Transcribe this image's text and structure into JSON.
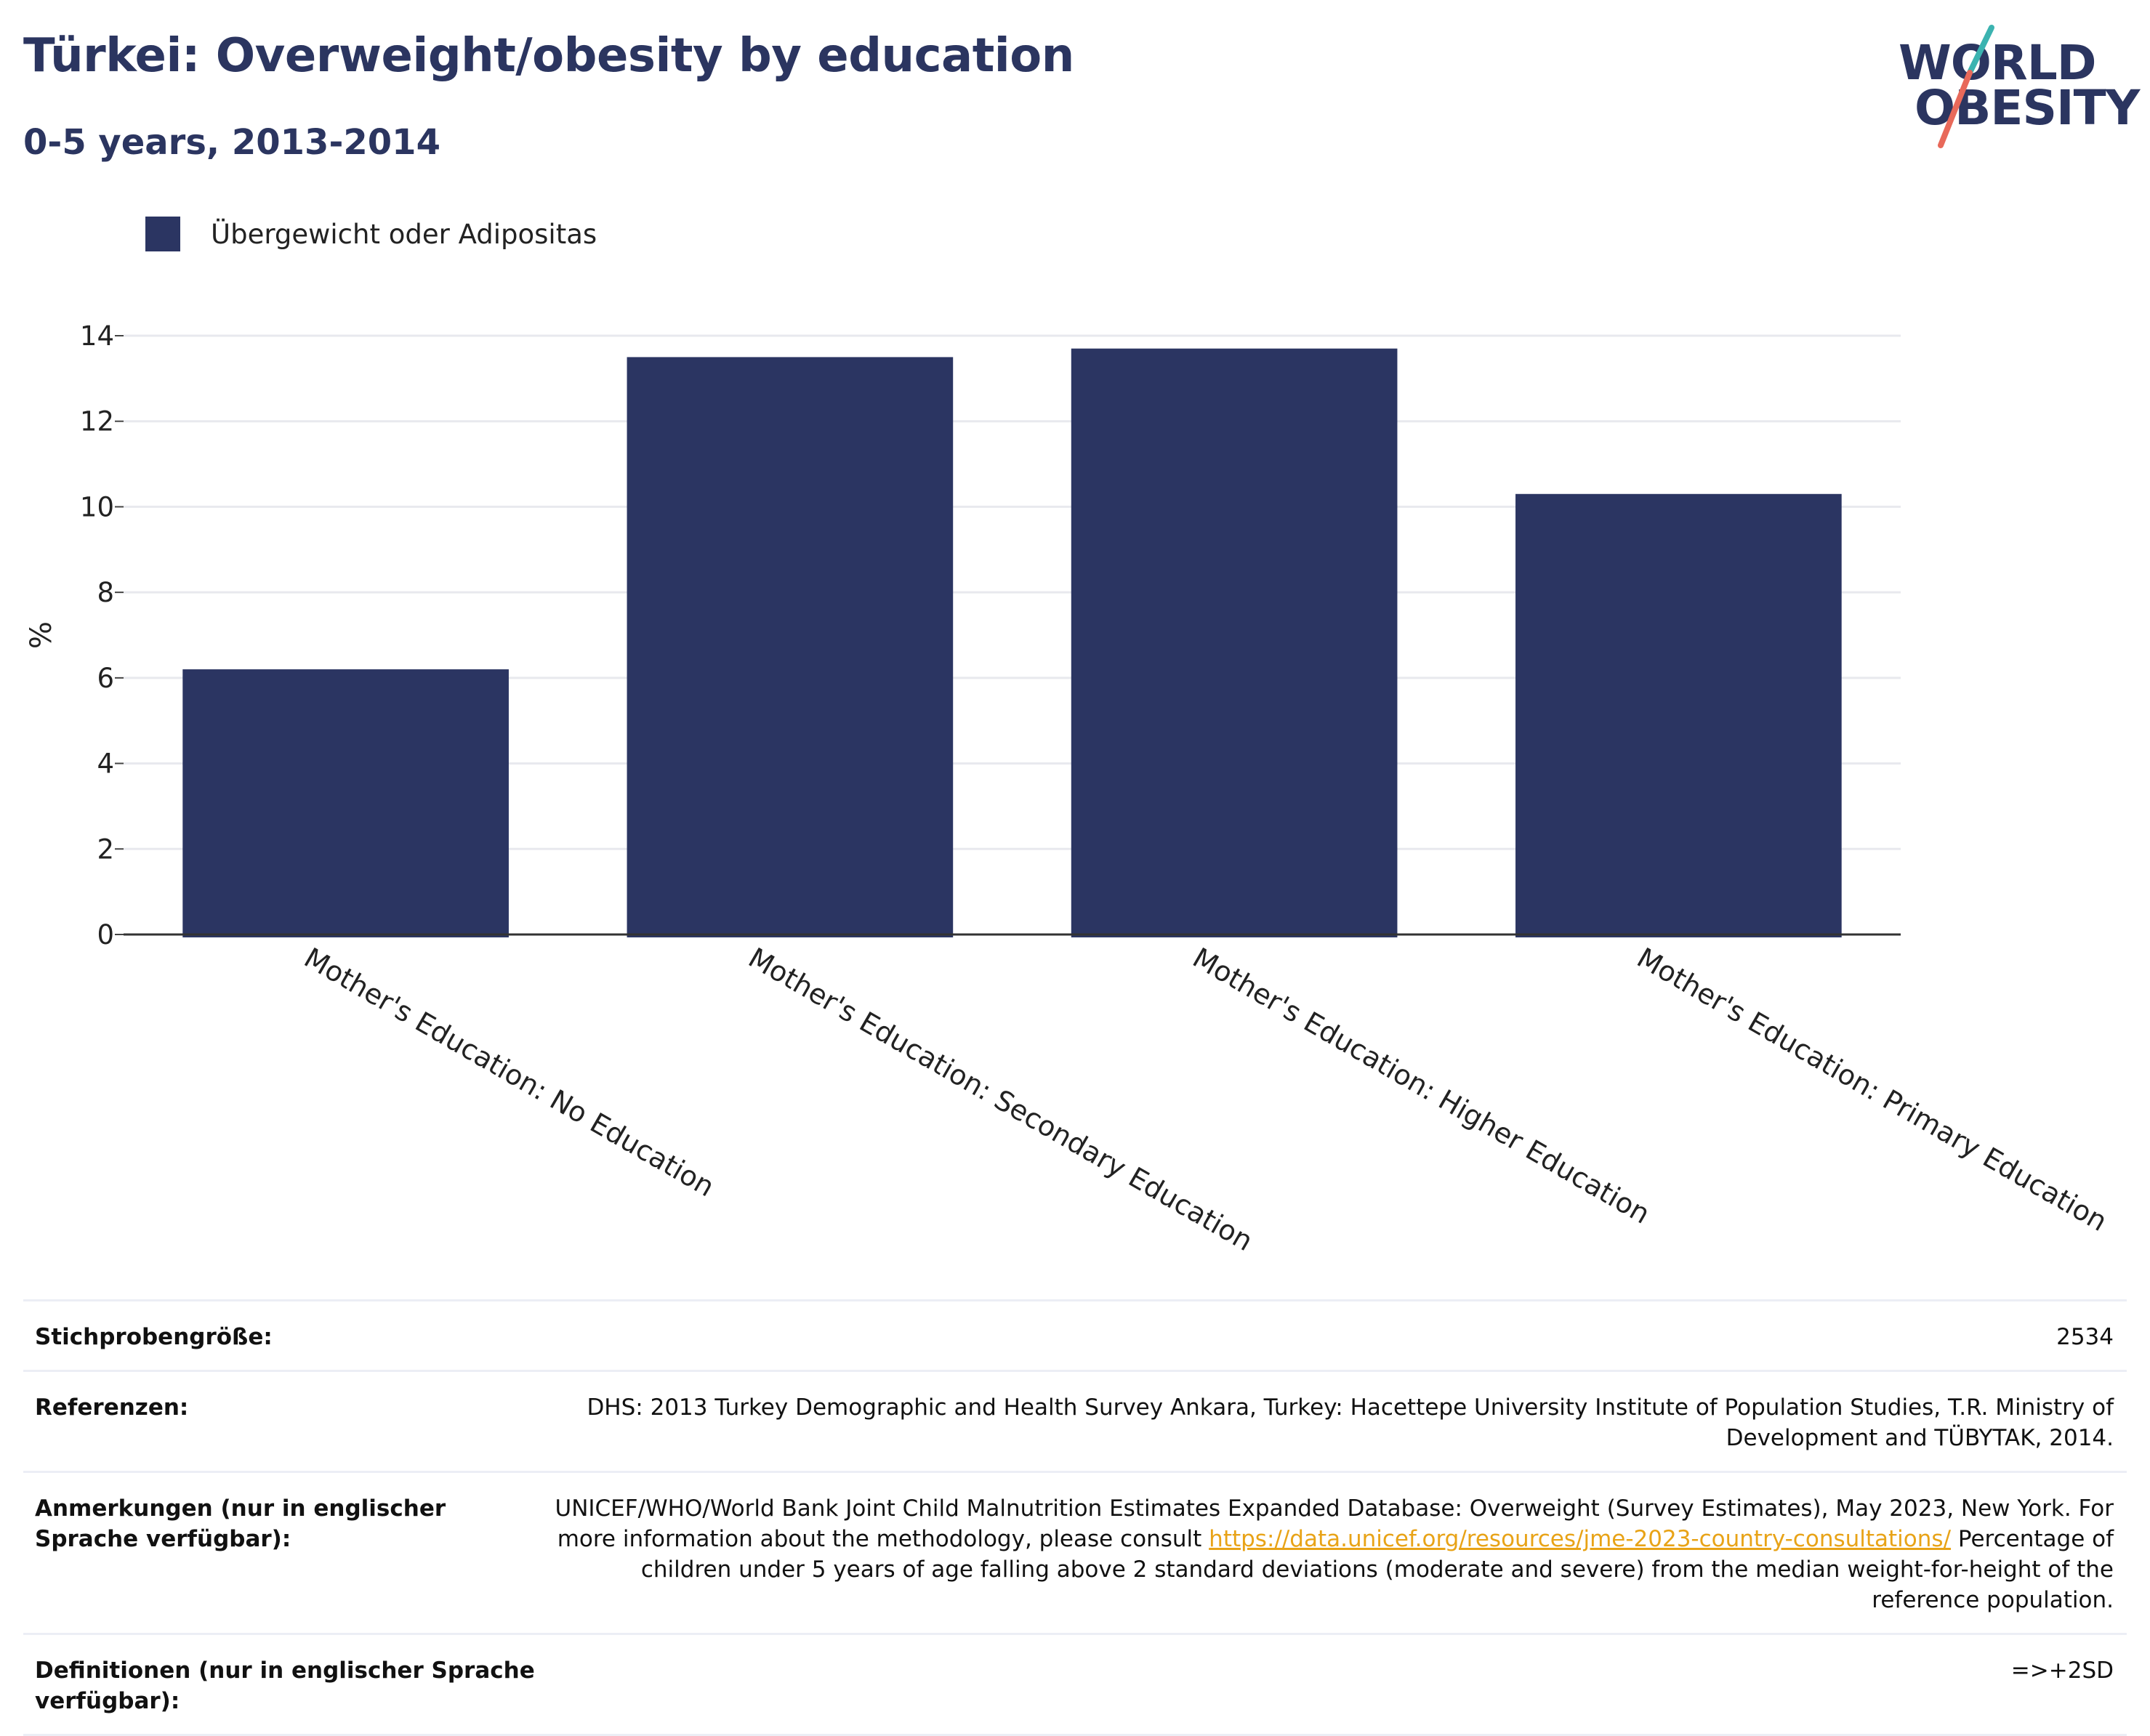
{
  "header": {
    "title": "Türkei: Overweight/obesity by education",
    "subtitle": "0-5 years, 2013-2014"
  },
  "logo": {
    "line1": "WORLD",
    "line2": "OBESITY",
    "colors": {
      "text": "#2b3560",
      "slash_top": "#3bb3b0",
      "slash_bottom": "#e8695a"
    }
  },
  "legend": {
    "label": "Übergewicht oder Adipositas",
    "color": "#2b3562"
  },
  "chart_data": {
    "type": "bar",
    "categories": [
      "Mother's Education: No Education",
      "Mother's Education: Secondary Education",
      "Mother's Education: Higher Education",
      "Mother's Education: Primary Education"
    ],
    "series": [
      {
        "name": "Übergewicht oder Adipositas",
        "values": [
          6.2,
          13.5,
          13.7,
          10.3
        ],
        "color": "#2b3562"
      }
    ],
    "ylabel": "%",
    "ylim": [
      0,
      14
    ],
    "yticks": [
      0,
      2,
      4,
      6,
      8,
      10,
      12,
      14
    ],
    "grid": true,
    "legend_position": "top-left"
  },
  "table": {
    "rows": [
      {
        "label": "Stichprobengröße:",
        "value": "2534"
      },
      {
        "label": "Referenzen:",
        "value": "DHS: 2013 Turkey Demographic and Health Survey Ankara, Turkey: Hacettepe University Institute of Population Studies, T.R. Ministry of Development and TÜBYTAK, 2014."
      },
      {
        "label": "Anmerkungen (nur in englischer Sprache verfügbar):",
        "value_before": "UNICEF/WHO/World Bank Joint Child Malnutrition Estimates Expanded Database: Overweight (Survey Estimates), May 2023, New York. For more information about the methodology, please consult ",
        "link": "https://data.unicef.org/resources/jme-2023-country-consultations/",
        "value_after": " Percentage of children under 5 years of age falling above 2 standard deviations (moderate and severe) from the median weight-for-height of the reference population."
      },
      {
        "label": "Definitionen (nur in englischer Sprache verfügbar):",
        "value": "=>+2SD"
      }
    ]
  }
}
